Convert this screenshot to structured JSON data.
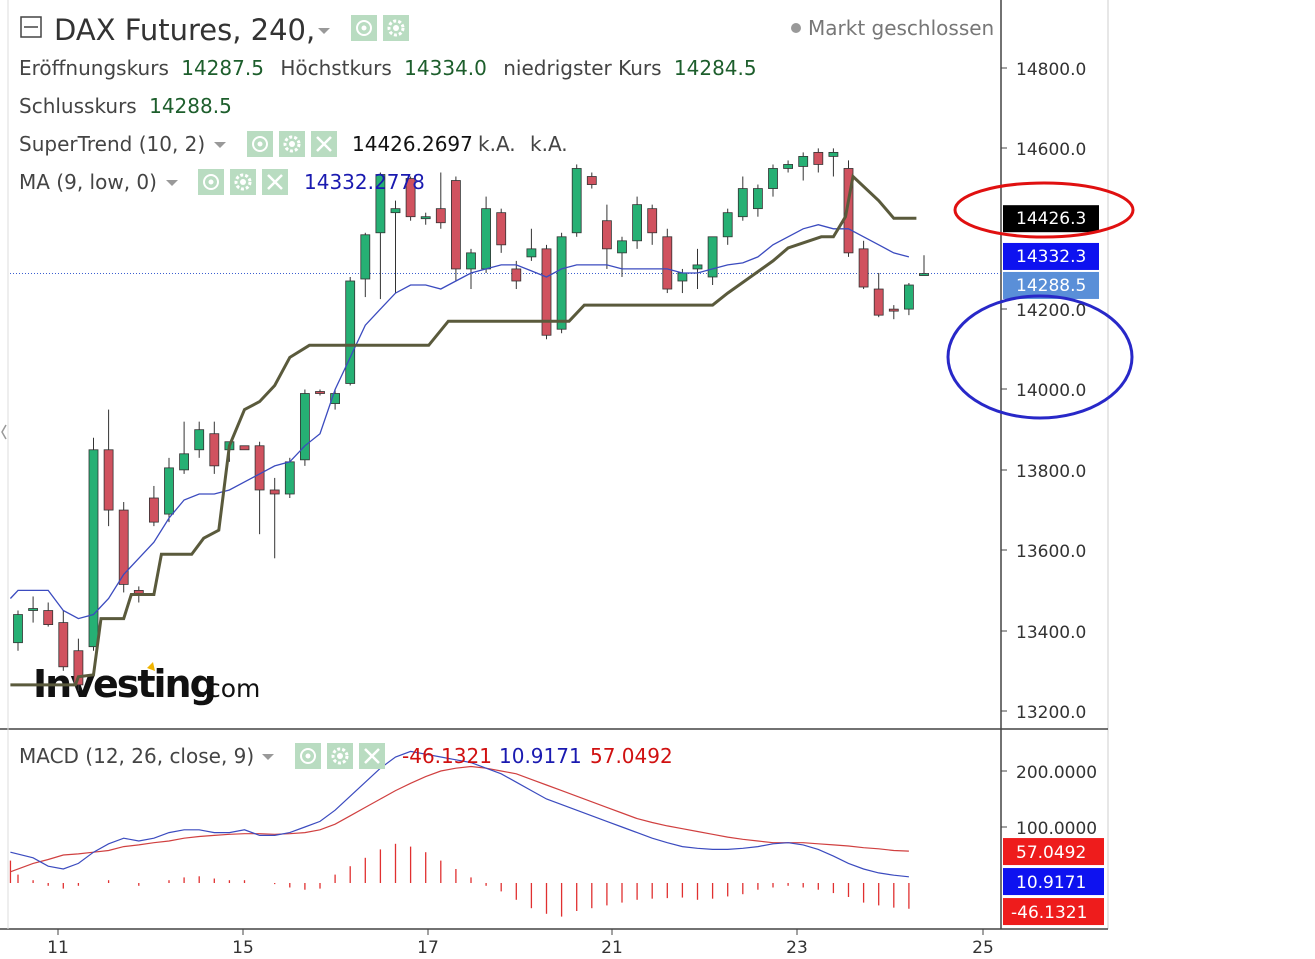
{
  "header": {
    "title": "DAX Futures, 240,",
    "market_status": "Markt geschlossen",
    "ohlc": {
      "open_label": "Eröffnungskurs",
      "open_value": "14287.5",
      "high_label": "Höchstkurs",
      "high_value": "14334.0",
      "low_label": "niedrigster Kurs",
      "low_value": "14284.5",
      "close_label": "Schlusskurs",
      "close_value": "14288.5"
    },
    "supertrend": {
      "label": "SuperTrend (10, 2)",
      "value": "14426.2697",
      "na1": "k.A.",
      "na2": "k.A."
    },
    "ma": {
      "label": "MA (9, low, 0)",
      "value": "14332.2778"
    },
    "macd": {
      "label": "MACD (12, 26, close, 9)",
      "hist_value": "-46.1321",
      "macd_value": "10.9171",
      "signal_value": "57.0492"
    }
  },
  "watermark": {
    "brand": "Investing",
    "suffix": ".com"
  },
  "colors": {
    "up": "#26b074",
    "down": "#d0525f",
    "supertrend": "#5a5a3c",
    "ma": "#3b4bbf",
    "macd_line": "#3b4bbf",
    "signal_line": "#d04040",
    "histogram": "#e03030",
    "axis": "#444444",
    "text_green": "#1d5e2c",
    "annotation_red": "#e01010",
    "annotation_blue": "#2828c8"
  },
  "price_axis": {
    "ticks": [
      "14800.0",
      "14600.0",
      "14200.0",
      "14000.0",
      "13800.0",
      "13600.0",
      "13400.0",
      "13200.0"
    ],
    "price_labels": [
      {
        "text": "14426.3",
        "value": 14426.3,
        "bg": "#000000"
      },
      {
        "text": "14332.3",
        "value": 14332.3,
        "bg": "#0e12f0"
      },
      {
        "text": "14288.5",
        "value": 14288.5,
        "bg": "#5a8fd8"
      }
    ]
  },
  "macd_axis": {
    "ticks": [
      "200.0000",
      "100.0000"
    ],
    "value_labels": [
      {
        "text": "57.0492",
        "value": 57.0492,
        "bg": "#ee1c1c"
      },
      {
        "text": "10.9171",
        "value": 10.9171,
        "bg": "#0e12f0"
      },
      {
        "text": "-46.1321",
        "value": -46.1321,
        "bg": "#ee1c1c"
      }
    ]
  },
  "time_axis": {
    "ticks": [
      "11",
      "15",
      "17",
      "21",
      "23",
      "25"
    ]
  },
  "chart_data": {
    "type": "candlestick",
    "title": "DAX Futures, 240,",
    "x_ticks": [
      "11",
      "15",
      "17",
      "21",
      "23",
      "25"
    ],
    "ylim": [
      13150,
      14910
    ],
    "candles": [
      {
        "o": 13370,
        "h": 13450,
        "l": 13350,
        "c": 13440
      },
      {
        "o": 13450,
        "h": 13485,
        "l": 13420,
        "c": 13455
      },
      {
        "o": 13450,
        "h": 13470,
        "l": 13410,
        "c": 13415
      },
      {
        "o": 13420,
        "h": 13450,
        "l": 13300,
        "c": 13310
      },
      {
        "o": 13350,
        "h": 13380,
        "l": 13250,
        "c": 13265
      },
      {
        "o": 13360,
        "h": 13880,
        "l": 13350,
        "c": 13850
      },
      {
        "o": 13850,
        "h": 13950,
        "l": 13660,
        "c": 13700
      },
      {
        "o": 13700,
        "h": 13720,
        "l": 13495,
        "c": 13515
      },
      {
        "o": 13500,
        "h": 13510,
        "l": 13470,
        "c": 13490
      },
      {
        "o": 13730,
        "h": 13760,
        "l": 13660,
        "c": 13670
      },
      {
        "o": 13690,
        "h": 13830,
        "l": 13670,
        "c": 13805
      },
      {
        "o": 13800,
        "h": 13920,
        "l": 13790,
        "c": 13840
      },
      {
        "o": 13850,
        "h": 13920,
        "l": 13830,
        "c": 13900
      },
      {
        "o": 13890,
        "h": 13920,
        "l": 13790,
        "c": 13810
      },
      {
        "o": 13850,
        "h": 13870,
        "l": 13820,
        "c": 13870
      },
      {
        "o": 13860,
        "h": 13860,
        "l": 13850,
        "c": 13850
      },
      {
        "o": 13860,
        "h": 13870,
        "l": 13640,
        "c": 13750
      },
      {
        "o": 13750,
        "h": 13780,
        "l": 13580,
        "c": 13740
      },
      {
        "o": 13740,
        "h": 13830,
        "l": 13730,
        "c": 13820
      },
      {
        "o": 13825,
        "h": 14000,
        "l": 13810,
        "c": 13990
      },
      {
        "o": 13995,
        "h": 14000,
        "l": 13985,
        "c": 13990
      },
      {
        "o": 13965,
        "h": 14000,
        "l": 13950,
        "c": 13990
      },
      {
        "o": 14015,
        "h": 14280,
        "l": 14010,
        "c": 14270
      },
      {
        "o": 14275,
        "h": 14390,
        "l": 14230,
        "c": 14385
      },
      {
        "o": 14390,
        "h": 14540,
        "l": 14225,
        "c": 14535
      },
      {
        "o": 14440,
        "h": 14470,
        "l": 14240,
        "c": 14450
      },
      {
        "o": 14525,
        "h": 14530,
        "l": 14420,
        "c": 14430
      },
      {
        "o": 14430,
        "h": 14440,
        "l": 14410,
        "c": 14430
      },
      {
        "o": 14450,
        "h": 14540,
        "l": 14400,
        "c": 14415
      },
      {
        "o": 14520,
        "h": 14530,
        "l": 14270,
        "c": 14300
      },
      {
        "o": 14300,
        "h": 14350,
        "l": 14250,
        "c": 14340
      },
      {
        "o": 14300,
        "h": 14480,
        "l": 14290,
        "c": 14450
      },
      {
        "o": 14440,
        "h": 14450,
        "l": 14340,
        "c": 14360
      },
      {
        "o": 14300,
        "h": 14320,
        "l": 14250,
        "c": 14270
      },
      {
        "o": 14330,
        "h": 14400,
        "l": 14320,
        "c": 14350
      },
      {
        "o": 14350,
        "h": 14360,
        "l": 14125,
        "c": 14135
      },
      {
        "o": 14150,
        "h": 14390,
        "l": 14140,
        "c": 14380
      },
      {
        "o": 14390,
        "h": 14560,
        "l": 14380,
        "c": 14550
      },
      {
        "o": 14530,
        "h": 14540,
        "l": 14500,
        "c": 14510
      },
      {
        "o": 14420,
        "h": 14460,
        "l": 14300,
        "c": 14350
      },
      {
        "o": 14340,
        "h": 14380,
        "l": 14280,
        "c": 14370
      },
      {
        "o": 14370,
        "h": 14480,
        "l": 14350,
        "c": 14460
      },
      {
        "o": 14450,
        "h": 14460,
        "l": 14360,
        "c": 14390
      },
      {
        "o": 14380,
        "h": 14400,
        "l": 14240,
        "c": 14250
      },
      {
        "o": 14270,
        "h": 14300,
        "l": 14240,
        "c": 14290
      },
      {
        "o": 14300,
        "h": 14350,
        "l": 14250,
        "c": 14310
      },
      {
        "o": 14280,
        "h": 14380,
        "l": 14260,
        "c": 14380
      },
      {
        "o": 14380,
        "h": 14450,
        "l": 14360,
        "c": 14440
      },
      {
        "o": 14430,
        "h": 14530,
        "l": 14420,
        "c": 14500
      },
      {
        "o": 14450,
        "h": 14510,
        "l": 14430,
        "c": 14500
      },
      {
        "o": 14500,
        "h": 14560,
        "l": 14480,
        "c": 14550
      },
      {
        "o": 14550,
        "h": 14570,
        "l": 14540,
        "c": 14560
      },
      {
        "o": 14555,
        "h": 14590,
        "l": 14520,
        "c": 14580
      },
      {
        "o": 14590,
        "h": 14600,
        "l": 14540,
        "c": 14560
      },
      {
        "o": 14580,
        "h": 14600,
        "l": 14530,
        "c": 14590
      },
      {
        "o": 14550,
        "h": 14570,
        "l": 14330,
        "c": 14340
      },
      {
        "o": 14350,
        "h": 14370,
        "l": 14250,
        "c": 14255
      },
      {
        "o": 14250,
        "h": 14290,
        "l": 14180,
        "c": 14185
      },
      {
        "o": 14200,
        "h": 14210,
        "l": 14175,
        "c": 14195
      },
      {
        "o": 14200,
        "h": 14265,
        "l": 14185,
        "c": 14260
      },
      {
        "o": 14287.5,
        "h": 14334,
        "l": 14284.5,
        "c": 14288.5
      }
    ],
    "supertrend": [
      [
        -0.5,
        13265
      ],
      [
        2,
        13265
      ],
      [
        3.8,
        13265
      ],
      [
        4,
        13285
      ],
      [
        5,
        13290
      ],
      [
        5.5,
        13430
      ],
      [
        7,
        13430
      ],
      [
        7.5,
        13490
      ],
      [
        9,
        13490
      ],
      [
        9.5,
        13590
      ],
      [
        11.5,
        13590
      ],
      [
        12.3,
        13630
      ],
      [
        13.3,
        13650
      ],
      [
        14,
        13860
      ],
      [
        15,
        13950
      ],
      [
        16,
        13970
      ],
      [
        17,
        14010
      ],
      [
        18,
        14080
      ],
      [
        19.3,
        14110
      ],
      [
        20,
        14110
      ],
      [
        27.2,
        14110
      ],
      [
        28.5,
        14170
      ],
      [
        34,
        14170
      ],
      [
        36,
        14170
      ],
      [
        36.5,
        14170
      ],
      [
        37.5,
        14210
      ],
      [
        46,
        14210
      ],
      [
        47,
        14240
      ],
      [
        48.5,
        14280
      ],
      [
        50,
        14320
      ],
      [
        51,
        14352
      ],
      [
        53.2,
        14380
      ],
      [
        54,
        14380
      ],
      [
        54.8,
        14430
      ],
      [
        55.3,
        14530
      ],
      [
        57,
        14470
      ],
      [
        58,
        14426
      ],
      [
        59.5,
        14426
      ]
    ],
    "ma": [
      [
        -0.5,
        13480
      ],
      [
        0,
        13500
      ],
      [
        2,
        13500
      ],
      [
        3,
        13450
      ],
      [
        4,
        13430
      ],
      [
        5,
        13440
      ],
      [
        6,
        13480
      ],
      [
        7,
        13540
      ],
      [
        8,
        13580
      ],
      [
        9,
        13620
      ],
      [
        10,
        13680
      ],
      [
        11,
        13725
      ],
      [
        12,
        13740
      ],
      [
        13,
        13740
      ],
      [
        14,
        13750
      ],
      [
        15,
        13770
      ],
      [
        16,
        13790
      ],
      [
        17,
        13810
      ],
      [
        18,
        13820
      ],
      [
        19,
        13860
      ],
      [
        20,
        13890
      ],
      [
        21,
        14000
      ],
      [
        22,
        14080
      ],
      [
        23,
        14160
      ],
      [
        24,
        14200
      ],
      [
        25,
        14240
      ],
      [
        26,
        14260
      ],
      [
        27,
        14260
      ],
      [
        28,
        14250
      ],
      [
        29,
        14270
      ],
      [
        30,
        14290
      ],
      [
        31,
        14300
      ],
      [
        32,
        14310
      ],
      [
        33,
        14310
      ],
      [
        34,
        14295
      ],
      [
        35,
        14280
      ],
      [
        36,
        14300
      ],
      [
        37,
        14310
      ],
      [
        38,
        14310
      ],
      [
        39,
        14310
      ],
      [
        40,
        14300
      ],
      [
        41,
        14300
      ],
      [
        42,
        14300
      ],
      [
        43,
        14300
      ],
      [
        44,
        14290
      ],
      [
        45,
        14290
      ],
      [
        46,
        14300
      ],
      [
        47,
        14310
      ],
      [
        48,
        14315
      ],
      [
        49,
        14330
      ],
      [
        50,
        14360
      ],
      [
        51,
        14380
      ],
      [
        52,
        14400
      ],
      [
        53,
        14410
      ],
      [
        54,
        14400
      ],
      [
        55,
        14400
      ],
      [
        56,
        14380
      ],
      [
        57,
        14360
      ],
      [
        58,
        14340
      ],
      [
        59,
        14330
      ]
    ],
    "macd_ylim": [
      -85,
      255
    ],
    "macd": [
      [
        -0.5,
        55
      ],
      [
        1,
        45
      ],
      [
        2,
        30
      ],
      [
        3,
        25
      ],
      [
        4,
        35
      ],
      [
        5,
        55
      ],
      [
        6,
        70
      ],
      [
        7,
        80
      ],
      [
        8,
        75
      ],
      [
        9,
        80
      ],
      [
        10,
        90
      ],
      [
        11,
        95
      ],
      [
        12,
        95
      ],
      [
        13,
        90
      ],
      [
        14,
        90
      ],
      [
        15,
        95
      ],
      [
        16,
        85
      ],
      [
        17,
        85
      ],
      [
        18,
        90
      ],
      [
        19,
        100
      ],
      [
        20,
        110
      ],
      [
        21,
        130
      ],
      [
        22,
        155
      ],
      [
        23,
        180
      ],
      [
        24,
        205
      ],
      [
        25,
        225
      ],
      [
        26,
        235
      ],
      [
        27,
        230
      ],
      [
        28,
        225
      ],
      [
        29,
        220
      ],
      [
        30,
        215
      ],
      [
        31,
        205
      ],
      [
        32,
        195
      ],
      [
        33,
        180
      ],
      [
        34,
        165
      ],
      [
        35,
        150
      ],
      [
        36,
        140
      ],
      [
        37,
        130
      ],
      [
        38,
        120
      ],
      [
        39,
        110
      ],
      [
        40,
        100
      ],
      [
        41,
        90
      ],
      [
        42,
        80
      ],
      [
        43,
        72
      ],
      [
        44,
        65
      ],
      [
        45,
        62
      ],
      [
        46,
        60
      ],
      [
        47,
        60
      ],
      [
        48,
        62
      ],
      [
        49,
        65
      ],
      [
        50,
        70
      ],
      [
        51,
        72
      ],
      [
        52,
        68
      ],
      [
        53,
        60
      ],
      [
        54,
        48
      ],
      [
        55,
        35
      ],
      [
        56,
        25
      ],
      [
        57,
        18
      ],
      [
        58,
        14
      ],
      [
        59,
        11
      ]
    ],
    "signal": [
      [
        -0.5,
        20
      ],
      [
        1,
        35
      ],
      [
        2,
        42
      ],
      [
        3,
        50
      ],
      [
        4,
        52
      ],
      [
        5,
        55
      ],
      [
        6,
        58
      ],
      [
        7,
        65
      ],
      [
        8,
        68
      ],
      [
        9,
        72
      ],
      [
        10,
        75
      ],
      [
        11,
        80
      ],
      [
        12,
        83
      ],
      [
        13,
        85
      ],
      [
        14,
        87
      ],
      [
        15,
        88
      ],
      [
        16,
        88
      ],
      [
        17,
        87
      ],
      [
        18,
        88
      ],
      [
        19,
        90
      ],
      [
        20,
        95
      ],
      [
        21,
        105
      ],
      [
        22,
        120
      ],
      [
        23,
        135
      ],
      [
        24,
        150
      ],
      [
        25,
        165
      ],
      [
        26,
        178
      ],
      [
        27,
        190
      ],
      [
        28,
        200
      ],
      [
        29,
        205
      ],
      [
        30,
        208
      ],
      [
        31,
        205
      ],
      [
        32,
        200
      ],
      [
        33,
        195
      ],
      [
        34,
        185
      ],
      [
        35,
        175
      ],
      [
        36,
        165
      ],
      [
        37,
        155
      ],
      [
        38,
        145
      ],
      [
        39,
        135
      ],
      [
        40,
        125
      ],
      [
        41,
        115
      ],
      [
        42,
        108
      ],
      [
        43,
        102
      ],
      [
        44,
        97
      ],
      [
        45,
        92
      ],
      [
        46,
        87
      ],
      [
        47,
        82
      ],
      [
        48,
        78
      ],
      [
        49,
        75
      ],
      [
        50,
        72
      ],
      [
        51,
        72
      ],
      [
        52,
        72
      ],
      [
        53,
        70
      ],
      [
        54,
        68
      ],
      [
        55,
        66
      ],
      [
        56,
        63
      ],
      [
        57,
        61
      ],
      [
        58,
        58
      ],
      [
        59,
        57
      ]
    ],
    "histogram": [
      [
        -0.5,
        40
      ],
      [
        0,
        15
      ],
      [
        1,
        5
      ],
      [
        2,
        -5
      ],
      [
        3,
        -10
      ],
      [
        4,
        -5
      ],
      [
        5,
        0
      ],
      [
        6,
        5
      ],
      [
        7,
        0
      ],
      [
        8,
        -5
      ],
      [
        9,
        0
      ],
      [
        10,
        5
      ],
      [
        11,
        10
      ],
      [
        12,
        12
      ],
      [
        13,
        8
      ],
      [
        14,
        5
      ],
      [
        15,
        5
      ],
      [
        16,
        0
      ],
      [
        17,
        -2
      ],
      [
        18,
        -8
      ],
      [
        19,
        -12
      ],
      [
        20,
        -10
      ],
      [
        21,
        15
      ],
      [
        22,
        30
      ],
      [
        23,
        45
      ],
      [
        24,
        60
      ],
      [
        25,
        70
      ],
      [
        26,
        65
      ],
      [
        27,
        55
      ],
      [
        28,
        40
      ],
      [
        29,
        25
      ],
      [
        30,
        10
      ],
      [
        31,
        -5
      ],
      [
        32,
        -15
      ],
      [
        33,
        -30
      ],
      [
        34,
        -45
      ],
      [
        35,
        -55
      ],
      [
        36,
        -60
      ],
      [
        37,
        -50
      ],
      [
        38,
        -45
      ],
      [
        39,
        -40
      ],
      [
        40,
        -35
      ],
      [
        41,
        -30
      ],
      [
        42,
        -28
      ],
      [
        43,
        -27
      ],
      [
        44,
        -26
      ],
      [
        45,
        -30
      ],
      [
        46,
        -28
      ],
      [
        47,
        -24
      ],
      [
        48,
        -20
      ],
      [
        49,
        -12
      ],
      [
        50,
        -8
      ],
      [
        51,
        -5
      ],
      [
        52,
        -8
      ],
      [
        53,
        -12
      ],
      [
        54,
        -18
      ],
      [
        55,
        -25
      ],
      [
        56,
        -35
      ],
      [
        57,
        -40
      ],
      [
        58,
        -44
      ],
      [
        59,
        -46
      ]
    ]
  }
}
